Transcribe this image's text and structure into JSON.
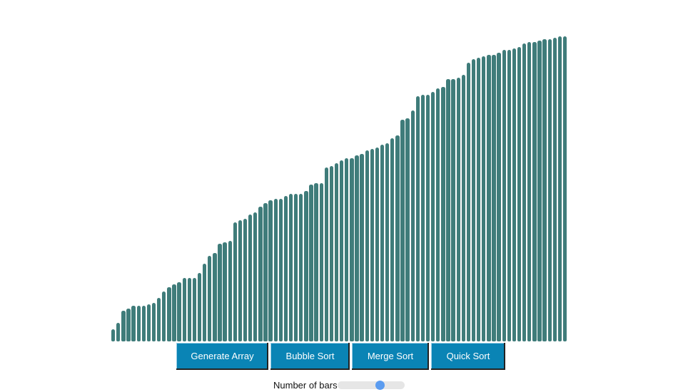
{
  "colors": {
    "bar": "#3f7c7a",
    "button": "#0a84b5",
    "slider_track": "#e6e6e6",
    "slider_thumb": "#5b9cf0"
  },
  "visualization": {
    "max_value": 100,
    "values": [
      4,
      6,
      10,
      10.5,
      11.5,
      11.5,
      11.5,
      12,
      12.5,
      14,
      16,
      17.5,
      18.5,
      19,
      20.5,
      20.5,
      20.5,
      22,
      25,
      27.5,
      28.5,
      31.5,
      32,
      32.5,
      38.5,
      39,
      39.5,
      41,
      41.5,
      43.5,
      44.5,
      45.5,
      46,
      46,
      47,
      47.5,
      47.5,
      47.5,
      48.5,
      50.5,
      51,
      51,
      56,
      56.5,
      57.5,
      58.5,
      59,
      59,
      60,
      60.5,
      61.5,
      62,
      62.5,
      63.5,
      64,
      65.5,
      66.5,
      71.5,
      72,
      74.5,
      79,
      79.5,
      79.5,
      80.5,
      81.5,
      82,
      84.5,
      84.5,
      85,
      86,
      90,
      91,
      91.5,
      92,
      92.5,
      92.5,
      93,
      94,
      94,
      94.5,
      95,
      96,
      96.5,
      96.5,
      97,
      97.5,
      97.5,
      98,
      98.5,
      98.5
    ]
  },
  "controls": {
    "buttons": [
      {
        "id": "generate",
        "label": "Generate Array"
      },
      {
        "id": "bubble",
        "label": "Bubble Sort"
      },
      {
        "id": "merge",
        "label": "Merge Sort"
      },
      {
        "id": "quick",
        "label": "Quick Sort"
      }
    ]
  },
  "slider": {
    "label": "Number of bars :",
    "value_fraction": 0.63
  }
}
